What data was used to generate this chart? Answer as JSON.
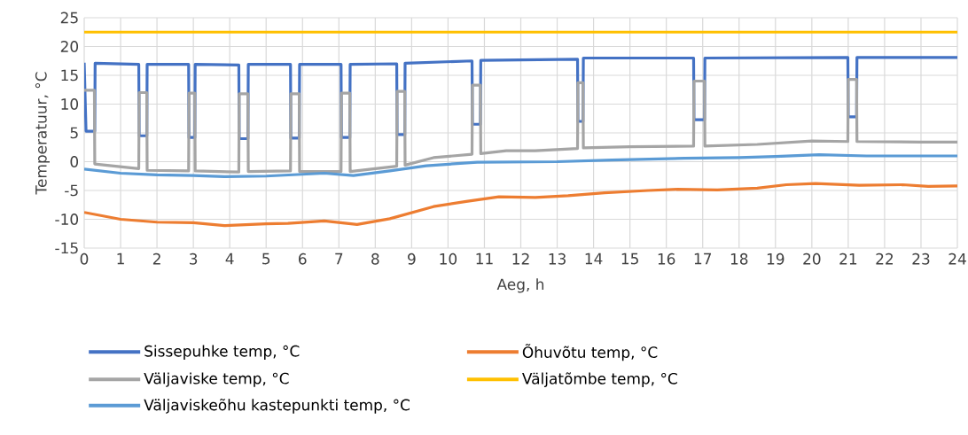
{
  "chart_data": {
    "type": "line",
    "xlabel": "Aeg, h",
    "ylabel": "Temperatuur, °C",
    "xlim": [
      0,
      24
    ],
    "ylim": [
      -15,
      25
    ],
    "xticks": [
      0,
      1,
      2,
      3,
      4,
      5,
      6,
      7,
      8,
      9,
      10,
      11,
      12,
      13,
      14,
      15,
      16,
      17,
      18,
      19,
      20,
      21,
      22,
      23,
      24
    ],
    "yticks": [
      -15,
      -10,
      -5,
      0,
      5,
      10,
      15,
      20,
      25
    ],
    "grid": true,
    "legend": "bottom",
    "series": [
      {
        "name": "Sissepuhke temp, °C",
        "color": "#4472c4",
        "x": [
          0,
          0.05,
          0.29,
          0.3,
          1.5,
          1.51,
          1.72,
          1.73,
          2.87,
          2.88,
          3.04,
          3.05,
          4.25,
          4.26,
          4.5,
          4.51,
          5.67,
          5.68,
          5.91,
          5.92,
          7.06,
          7.07,
          7.3,
          7.31,
          8.59,
          8.6,
          8.81,
          8.82,
          10.66,
          10.67,
          10.89,
          10.9,
          13.56,
          13.57,
          13.71,
          13.72,
          16.75,
          16.76,
          17.05,
          17.06,
          20.99,
          21.0,
          21.23,
          21.24,
          24
        ],
        "values": [
          17.2,
          5.3,
          5.3,
          17.1,
          16.9,
          4.5,
          4.5,
          16.9,
          16.9,
          4.2,
          4.2,
          16.9,
          16.8,
          4.0,
          4.0,
          16.9,
          16.9,
          4.1,
          4.1,
          16.9,
          16.9,
          4.2,
          4.2,
          16.9,
          17.0,
          4.7,
          4.7,
          17.1,
          17.5,
          6.5,
          6.5,
          17.6,
          17.8,
          7.0,
          7.0,
          18.0,
          18.0,
          7.3,
          7.3,
          18.0,
          18.1,
          7.8,
          7.8,
          18.1,
          18.1
        ]
      },
      {
        "name": "Õhuvõtu temp, °C",
        "color": "#ed7d31",
        "x": [
          0,
          1,
          2,
          3,
          3.85,
          5,
          5.6,
          6.6,
          7.5,
          8.4,
          9.6,
          10.5,
          11.4,
          12.4,
          13.3,
          14.3,
          15.5,
          16.3,
          17.4,
          18.5,
          19.3,
          20.1,
          21.3,
          22.5,
          23.2,
          24
        ],
        "values": [
          -8.8,
          -10.0,
          -10.5,
          -10.6,
          -11.1,
          -10.8,
          -10.7,
          -10.3,
          -10.9,
          -9.9,
          -7.8,
          -6.9,
          -6.1,
          -6.2,
          -5.9,
          -5.4,
          -5.0,
          -4.8,
          -4.9,
          -4.6,
          -4.0,
          -3.8,
          -4.1,
          -4.0,
          -4.3,
          -4.2
        ]
      },
      {
        "name": "Väljaviske temp, °C",
        "color": "#a5a5a5",
        "x": [
          0,
          0.28,
          0.29,
          1.5,
          1.51,
          1.72,
          1.73,
          2.87,
          2.88,
          3.04,
          3.05,
          4.25,
          4.26,
          4.5,
          4.51,
          5.67,
          5.68,
          5.91,
          5.92,
          7.06,
          7.07,
          7.3,
          7.31,
          8.0,
          8.59,
          8.6,
          8.81,
          8.82,
          9.6,
          10.66,
          10.67,
          10.89,
          10.9,
          11.6,
          12.4,
          13.56,
          13.57,
          13.71,
          13.72,
          15,
          16.75,
          16.76,
          17.05,
          17.06,
          18.5,
          20.0,
          20.99,
          21.0,
          21.23,
          21.24,
          23,
          24
        ],
        "values": [
          12.4,
          12.4,
          -0.4,
          -1.2,
          12.0,
          12.0,
          -1.5,
          -1.6,
          11.9,
          11.9,
          -1.6,
          -1.8,
          11.8,
          11.8,
          -1.7,
          -1.6,
          11.8,
          11.8,
          -1.7,
          -1.7,
          11.9,
          11.9,
          -1.7,
          -1.2,
          -0.8,
          12.2,
          12.2,
          -0.6,
          0.7,
          1.3,
          13.3,
          13.3,
          1.4,
          1.9,
          1.9,
          2.3,
          13.7,
          13.7,
          2.4,
          2.6,
          2.7,
          14.0,
          14.0,
          2.7,
          3.0,
          3.6,
          3.5,
          14.3,
          14.3,
          3.5,
          3.4,
          3.4
        ]
      },
      {
        "name": "Väljatõmbe temp, °C",
        "color": "#ffc000",
        "x": [
          0,
          24
        ],
        "values": [
          22.5,
          22.5
        ]
      },
      {
        "name": "Väljaviskeõhu kastepunkti temp, °C",
        "color": "#5b9bd5",
        "x": [
          0,
          1,
          2,
          3,
          3.85,
          5,
          6.6,
          7.4,
          8.4,
          9.4,
          10.8,
          13,
          14.5,
          16.5,
          18,
          19,
          20.2,
          21.5,
          24
        ],
        "values": [
          -1.3,
          -2.0,
          -2.3,
          -2.4,
          -2.6,
          -2.5,
          -2.0,
          -2.4,
          -1.6,
          -0.7,
          -0.1,
          0,
          0.3,
          0.6,
          0.7,
          0.9,
          1.2,
          1.0,
          1.0
        ]
      }
    ]
  }
}
